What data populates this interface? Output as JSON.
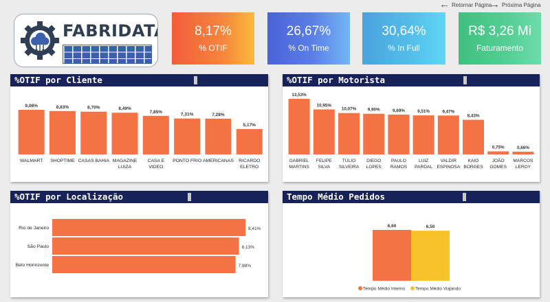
{
  "nav": {
    "back_label": "Retornar Página",
    "next_label": "Próxima Página"
  },
  "logo": {
    "brand": "FABRIDATA"
  },
  "kpis": {
    "otif": {
      "value": "8,17%",
      "label": "% OTIF"
    },
    "ontime": {
      "value": "26,67%",
      "label": "% On Time"
    },
    "infull": {
      "value": "30,64%",
      "label": "% In Full"
    },
    "faturamento": {
      "value": "R$ 3,26 Mi",
      "label": "Faturamento"
    }
  },
  "colors": {
    "bar": "#f47244",
    "bar_yellow": "#f8c32a",
    "title_bg": "#162259"
  },
  "chart_data": [
    {
      "id": "cliente",
      "type": "bar",
      "title": "%OTIF por Cliente",
      "categories": [
        [
          "WALMART"
        ],
        [
          "SHOPTIME"
        ],
        [
          "CASAS BAHIA"
        ],
        [
          "MAGAZINE",
          "LUIZA"
        ],
        [
          "CASA E",
          "VIDEO"
        ],
        [
          "PONTO FRIO"
        ],
        [
          "AMERICANAS"
        ],
        [
          "RICARDO",
          "ELETRO"
        ]
      ],
      "values": [
        9.08,
        8.83,
        8.7,
        8.49,
        7.85,
        7.31,
        7.28,
        5.17
      ],
      "labels": [
        "9,08%",
        "8,83%",
        "8,70%",
        "8,49%",
        "7,85%",
        "7,31%",
        "7,28%",
        "5,17%"
      ],
      "ylim": [
        0,
        9.08
      ]
    },
    {
      "id": "motorista",
      "type": "bar",
      "title": "%OTIF por Motorista",
      "categories": [
        [
          "GABRIEL",
          "MARTINS"
        ],
        [
          "FELIPE",
          "SILVA"
        ],
        [
          "TÚLIO",
          "SILVEIRA"
        ],
        [
          "DIEGO",
          "LOPES"
        ],
        [
          "PAULO",
          "RAMOS"
        ],
        [
          "LUIZ",
          "PARDAL"
        ],
        [
          "VALDIR",
          "ESPINOSA"
        ],
        [
          "KAIO",
          "BORGES"
        ],
        [
          "JOÃO",
          "GOMES"
        ],
        [
          "MARCOS",
          "LEROY"
        ]
      ],
      "values": [
        13.53,
        10.95,
        10.07,
        9.9,
        9.69,
        9.51,
        9.47,
        8.43,
        0.75,
        0.66
      ],
      "labels": [
        "13,53%",
        "10,95%",
        "10,07%",
        "9,90%",
        "9,69%",
        "9,51%",
        "9,47%",
        "8,43%",
        "0,75%",
        "0,66%"
      ],
      "ylim": [
        0,
        13.53
      ]
    },
    {
      "id": "local",
      "type": "bar",
      "orientation": "horizontal",
      "title": "%OTIF por Localização",
      "categories": [
        "Rio de Janeiro",
        "São Paulo",
        "Belo Horinzonte"
      ],
      "values": [
        8.41,
        8.13,
        7.98
      ],
      "labels": [
        "8,41%",
        "8,13%",
        "7,98%"
      ],
      "xlim": [
        0,
        8.41
      ]
    },
    {
      "id": "tempo",
      "type": "bar",
      "title": "Tempo Médio Pedidos",
      "series": [
        {
          "name": "Tempo Médio Interno",
          "value": 6.6,
          "label": "6,60",
          "color": "#f47244"
        },
        {
          "name": "Tempo Médio Viajando",
          "value": 6.5,
          "label": "6,50",
          "color": "#f8c32a"
        }
      ],
      "ylim": [
        0,
        6.6
      ],
      "legend": "bottom"
    }
  ]
}
